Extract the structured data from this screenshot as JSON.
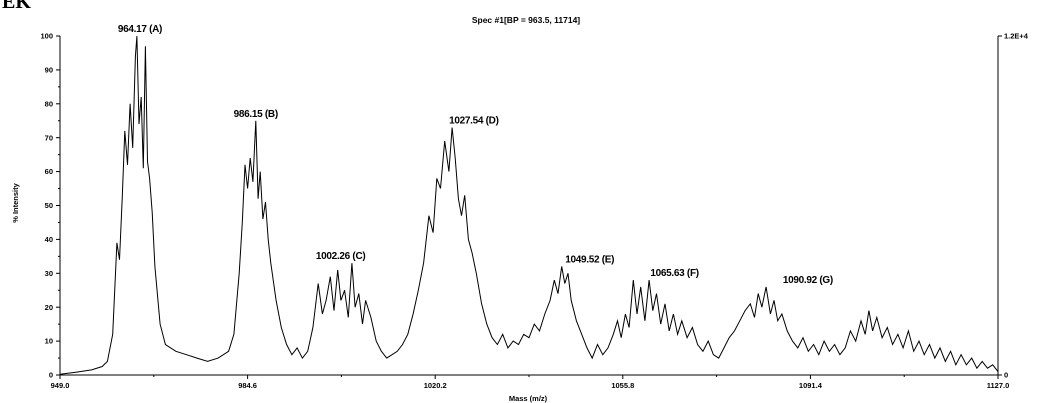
{
  "panel_label": "EK",
  "chart_data": {
    "type": "line",
    "title": "Spec #1[BP = 963.5, 11714]",
    "xlabel": "Mass (m/z)",
    "ylabel": "% Intensity",
    "xlim": [
      949.0,
      1127.0
    ],
    "ylim": [
      0,
      100
    ],
    "x_ticks": [
      "949.0",
      "984.6",
      "1020.2",
      "1055.8",
      "1091.4",
      "1127.0"
    ],
    "y_ticks": [
      "0",
      "10",
      "20",
      "30",
      "40",
      "50",
      "60",
      "70",
      "80",
      "90",
      "100"
    ],
    "right_axis": {
      "top_label": "1.2E+4",
      "bottom_label": "0"
    },
    "peak_labels": [
      {
        "text": "964.17 (A)",
        "x": 964.17,
        "y": 100
      },
      {
        "text": "986.15 (B)",
        "x": 986.15,
        "y": 75
      },
      {
        "text": "1002.26 (C)",
        "x": 1002.26,
        "y": 33
      },
      {
        "text": "1027.54 (D)",
        "x": 1027.54,
        "y": 73
      },
      {
        "text": "1049.52 (E)",
        "x": 1049.52,
        "y": 32
      },
      {
        "text": "1065.63 (F)",
        "x": 1065.63,
        "y": 28
      },
      {
        "text": "1090.92 (G)",
        "x": 1090.92,
        "y": 26
      }
    ],
    "series": [
      {
        "values": [
          [
            949.0,
            0.2
          ],
          [
            952.0,
            0.8
          ],
          [
            955.0,
            1.5
          ],
          [
            957.0,
            2.5
          ],
          [
            958.0,
            4
          ],
          [
            959.0,
            12
          ],
          [
            959.8,
            39
          ],
          [
            960.3,
            34
          ],
          [
            960.8,
            52
          ],
          [
            961.3,
            72
          ],
          [
            961.8,
            62
          ],
          [
            962.3,
            80
          ],
          [
            962.8,
            67
          ],
          [
            963.3,
            94
          ],
          [
            963.6,
            100
          ],
          [
            964.0,
            74
          ],
          [
            964.4,
            82
          ],
          [
            964.8,
            61
          ],
          [
            965.2,
            97
          ],
          [
            965.6,
            63
          ],
          [
            966.0,
            58
          ],
          [
            966.5,
            48
          ],
          [
            967.0,
            32
          ],
          [
            968.0,
            15
          ],
          [
            969.0,
            9
          ],
          [
            971.0,
            7
          ],
          [
            973.0,
            6
          ],
          [
            975.0,
            5
          ],
          [
            977.0,
            4
          ],
          [
            979.0,
            5
          ],
          [
            981.0,
            7
          ],
          [
            982.0,
            12
          ],
          [
            983.0,
            30
          ],
          [
            983.6,
            45
          ],
          [
            984.1,
            62
          ],
          [
            984.6,
            55
          ],
          [
            985.1,
            64
          ],
          [
            985.6,
            57
          ],
          [
            986.15,
            75
          ],
          [
            986.6,
            52
          ],
          [
            987.0,
            60
          ],
          [
            987.5,
            46
          ],
          [
            988.0,
            51
          ],
          [
            988.5,
            40
          ],
          [
            989.0,
            33
          ],
          [
            990.0,
            22
          ],
          [
            991.0,
            14
          ],
          [
            992.0,
            9
          ],
          [
            993.0,
            6
          ],
          [
            994.0,
            8
          ],
          [
            995.0,
            5
          ],
          [
            996.0,
            7
          ],
          [
            997.0,
            14
          ],
          [
            998.0,
            27
          ],
          [
            998.8,
            18
          ],
          [
            999.5,
            22
          ],
          [
            1000.3,
            29
          ],
          [
            1001.0,
            19
          ],
          [
            1001.7,
            31
          ],
          [
            1002.3,
            22
          ],
          [
            1003.0,
            25
          ],
          [
            1003.7,
            17
          ],
          [
            1004.4,
            33
          ],
          [
            1005.0,
            20
          ],
          [
            1005.7,
            24
          ],
          [
            1006.4,
            15
          ],
          [
            1007.0,
            22
          ],
          [
            1008.0,
            17
          ],
          [
            1009.0,
            10
          ],
          [
            1010.0,
            7
          ],
          [
            1011.0,
            5
          ],
          [
            1012.0,
            6
          ],
          [
            1013.0,
            7
          ],
          [
            1014.0,
            9
          ],
          [
            1015.0,
            12
          ],
          [
            1016.0,
            18
          ],
          [
            1017.0,
            25
          ],
          [
            1018.0,
            33
          ],
          [
            1019.0,
            47
          ],
          [
            1019.8,
            42
          ],
          [
            1020.5,
            58
          ],
          [
            1021.2,
            55
          ],
          [
            1022.0,
            69
          ],
          [
            1022.8,
            60
          ],
          [
            1023.4,
            73
          ],
          [
            1024.0,
            64
          ],
          [
            1024.6,
            52
          ],
          [
            1025.2,
            47
          ],
          [
            1025.8,
            53
          ],
          [
            1026.5,
            40
          ],
          [
            1027.2,
            36
          ],
          [
            1028.0,
            30
          ],
          [
            1029.0,
            21
          ],
          [
            1030.0,
            15
          ],
          [
            1031.0,
            11
          ],
          [
            1032.0,
            9
          ],
          [
            1033.0,
            12
          ],
          [
            1034.0,
            8
          ],
          [
            1035.0,
            10
          ],
          [
            1036.0,
            9
          ],
          [
            1037.0,
            12
          ],
          [
            1038.0,
            11
          ],
          [
            1039.0,
            15
          ],
          [
            1040.0,
            13
          ],
          [
            1041.0,
            18
          ],
          [
            1042.0,
            22
          ],
          [
            1042.8,
            28
          ],
          [
            1043.5,
            24
          ],
          [
            1044.2,
            32
          ],
          [
            1044.8,
            27
          ],
          [
            1045.4,
            30
          ],
          [
            1046.0,
            22
          ],
          [
            1047.0,
            16
          ],
          [
            1048.0,
            12
          ],
          [
            1049.0,
            8
          ],
          [
            1050.0,
            5
          ],
          [
            1051.0,
            9
          ],
          [
            1052.0,
            6
          ],
          [
            1053.0,
            8
          ],
          [
            1054.0,
            12
          ],
          [
            1054.8,
            16
          ],
          [
            1055.5,
            11
          ],
          [
            1056.3,
            18
          ],
          [
            1057.0,
            14
          ],
          [
            1057.8,
            28
          ],
          [
            1058.5,
            18
          ],
          [
            1059.2,
            26
          ],
          [
            1060.0,
            16
          ],
          [
            1060.8,
            28
          ],
          [
            1061.5,
            19
          ],
          [
            1062.2,
            24
          ],
          [
            1063.0,
            15
          ],
          [
            1063.8,
            21
          ],
          [
            1064.6,
            13
          ],
          [
            1065.4,
            18
          ],
          [
            1066.2,
            12
          ],
          [
            1067.0,
            16
          ],
          [
            1068.0,
            11
          ],
          [
            1069.0,
            14
          ],
          [
            1070.0,
            9
          ],
          [
            1071.0,
            7
          ],
          [
            1072.0,
            10
          ],
          [
            1073.0,
            6
          ],
          [
            1074.0,
            5
          ],
          [
            1075.0,
            8
          ],
          [
            1076.0,
            11
          ],
          [
            1077.0,
            13
          ],
          [
            1078.0,
            16
          ],
          [
            1079.0,
            19
          ],
          [
            1080.0,
            21
          ],
          [
            1080.8,
            17
          ],
          [
            1081.5,
            24
          ],
          [
            1082.2,
            20
          ],
          [
            1083.0,
            26
          ],
          [
            1083.8,
            18
          ],
          [
            1084.5,
            22
          ],
          [
            1085.2,
            16
          ],
          [
            1086.0,
            18
          ],
          [
            1087.0,
            13
          ],
          [
            1088.0,
            10
          ],
          [
            1089.0,
            8
          ],
          [
            1090.0,
            11
          ],
          [
            1091.0,
            7
          ],
          [
            1092.0,
            9
          ],
          [
            1093.0,
            6
          ],
          [
            1094.0,
            10
          ],
          [
            1095.0,
            7
          ],
          [
            1096.0,
            9
          ],
          [
            1097.0,
            6
          ],
          [
            1098.0,
            8
          ],
          [
            1099.0,
            13
          ],
          [
            1100.0,
            10
          ],
          [
            1101.0,
            16
          ],
          [
            1101.8,
            12
          ],
          [
            1102.5,
            19
          ],
          [
            1103.2,
            13
          ],
          [
            1104.0,
            17
          ],
          [
            1105.0,
            11
          ],
          [
            1106.0,
            14
          ],
          [
            1107.0,
            9
          ],
          [
            1108.0,
            12
          ],
          [
            1109.0,
            8
          ],
          [
            1110.0,
            13
          ],
          [
            1111.0,
            7
          ],
          [
            1112.0,
            10
          ],
          [
            1113.0,
            6
          ],
          [
            1114.0,
            9
          ],
          [
            1115.0,
            5
          ],
          [
            1116.0,
            8
          ],
          [
            1117.0,
            4
          ],
          [
            1118.0,
            7
          ],
          [
            1119.0,
            3
          ],
          [
            1120.0,
            6
          ],
          [
            1121.0,
            3
          ],
          [
            1122.0,
            5
          ],
          [
            1123.0,
            2
          ],
          [
            1124.0,
            4
          ],
          [
            1125.0,
            2
          ],
          [
            1126.0,
            3
          ],
          [
            1127.0,
            1
          ]
        ]
      }
    ]
  }
}
